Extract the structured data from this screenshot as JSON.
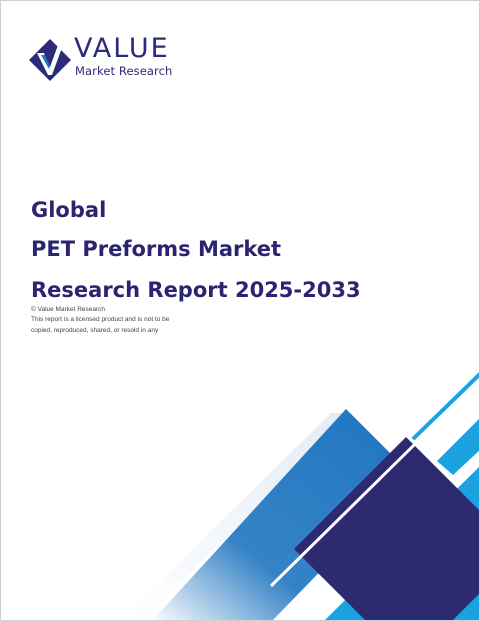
{
  "brand": {
    "name": "VALUE",
    "tagline": "Market Research",
    "icon": "diamond-v-logo-icon",
    "colors": {
      "navy": "#2b2470",
      "blue": "#1f75c0",
      "cyan": "#1aa3e0",
      "darkblue": "#2e2a72"
    }
  },
  "cover": {
    "title_line1": "Global",
    "title_line2": "PET Preforms Market",
    "title_line3": "Research Report 2025-2033"
  },
  "notice": {
    "copyright": "© Value Market Research",
    "line1": "This report is a licensed product and is not to be",
    "line2": "copied, reproduced, shared, or resold in any"
  }
}
